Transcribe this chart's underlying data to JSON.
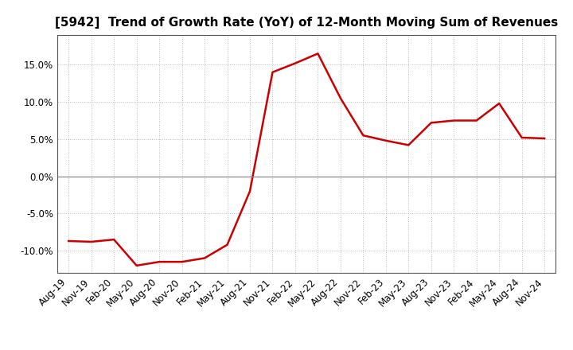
{
  "title": "[5942]  Trend of Growth Rate (YoY) of 12-Month Moving Sum of Revenues",
  "line_color": "#cc0000",
  "background_color": "#ffffff",
  "grid_color": "#bbbbbb",
  "zero_line_color": "#888888",
  "xlabels": [
    "Aug-19",
    "Nov-19",
    "Feb-20",
    "May-20",
    "Aug-20",
    "Nov-20",
    "Feb-21",
    "May-21",
    "Aug-21",
    "Nov-21",
    "Feb-22",
    "May-22",
    "Aug-22",
    "Nov-22",
    "Feb-23",
    "May-23",
    "Aug-23",
    "Nov-23",
    "Feb-24",
    "May-24",
    "Aug-24",
    "Nov-24"
  ],
  "values": [
    -0.087,
    -0.088,
    -0.085,
    -0.12,
    -0.115,
    -0.115,
    -0.11,
    -0.092,
    -0.02,
    0.14,
    0.152,
    0.165,
    0.105,
    0.055,
    0.048,
    0.042,
    0.072,
    0.075,
    0.075,
    0.098,
    0.052,
    0.051
  ],
  "ylim": [
    -0.13,
    0.19
  ],
  "yticks": [
    -0.1,
    -0.05,
    0.0,
    0.05,
    0.1,
    0.15
  ],
  "title_fontsize": 11,
  "tick_fontsize": 8.5
}
